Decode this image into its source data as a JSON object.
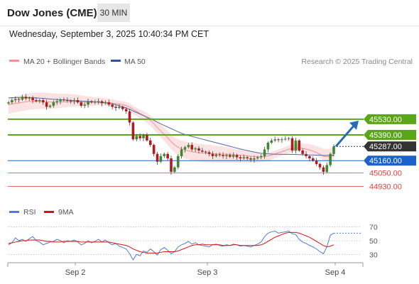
{
  "header": {
    "instrument": "Dow Jones (CME)",
    "timeframe": "30 MIN",
    "datetime": "Wednesday, September 3, 2025 10:40:34 PM CET"
  },
  "legend": {
    "ma20_label": "MA 20 + Bollinger Bands",
    "ma50_label": "MA 50",
    "credit": "Research © 2025 Trading Central"
  },
  "rsi_legend": {
    "rsi_label": "RSI",
    "ma9_label": "9MA"
  },
  "colors": {
    "resistance": "#5aa51a",
    "support_main": "#1a62c9",
    "support_secondary": "#e84040",
    "current": "#333333",
    "arrow": "#2a6bb5",
    "bollinger_fill": "#fbe3e3",
    "ma20": "#f19393",
    "ma50": "#5566aa",
    "rsi_line": "#4a7fd8",
    "rsi_ma": "#dd1111",
    "candle_up": "#3c8a2e",
    "candle_down": "#b01b1b"
  },
  "chart_data": [
    {
      "type": "candlestick",
      "title": "Dow Jones (CME)",
      "timeframe": "30 MIN",
      "x_labels": [
        "Sep 2",
        "Sep 3",
        "Sep 4"
      ],
      "ylim": [
        44870,
        45960
      ],
      "levels": [
        {
          "label": "45530.00",
          "value": 45530,
          "kind": "resistance"
        },
        {
          "label": "45390.00",
          "value": 45390,
          "kind": "resistance"
        },
        {
          "label": "45287.00",
          "value": 45287,
          "kind": "current"
        },
        {
          "label": "45160.00",
          "value": 45160,
          "kind": "support"
        },
        {
          "label": "45050.00",
          "value": 45050,
          "kind": "support"
        },
        {
          "label": "44930.00",
          "value": 44930,
          "kind": "support"
        }
      ],
      "close": [
        45680,
        45700,
        45710,
        45705,
        45730,
        45715,
        45720,
        45700,
        45690,
        45700,
        45680,
        45640,
        45650,
        45680,
        45690,
        45705,
        45700,
        45695,
        45690,
        45700,
        45680,
        45650,
        45660,
        45690,
        45680,
        45685,
        45690,
        45672,
        45680,
        45660,
        45640,
        45630,
        45640,
        45620,
        45600,
        45500,
        45350,
        45380,
        45360,
        45390,
        45340,
        45300,
        45220,
        45150,
        45200,
        45220,
        45180,
        45060,
        45100,
        45200,
        45260,
        45280,
        45300,
        45260,
        45270,
        45250,
        45240,
        45235,
        45220,
        45200,
        45215,
        45210,
        45200,
        45210,
        45195,
        45210,
        45190,
        45180,
        45190,
        45180,
        45170,
        45180,
        45190,
        45200,
        45260,
        45320,
        45340,
        45350,
        45345,
        45350,
        45355,
        45360,
        45250,
        45340,
        45250,
        45220,
        45200,
        45180,
        45160,
        45130,
        45100,
        45060,
        45120,
        45220,
        45287
      ],
      "open": [
        45670,
        45680,
        45700,
        45710,
        45705,
        45730,
        45715,
        45720,
        45700,
        45690,
        45700,
        45680,
        45640,
        45650,
        45680,
        45690,
        45705,
        45700,
        45695,
        45690,
        45700,
        45680,
        45650,
        45660,
        45690,
        45680,
        45685,
        45690,
        45672,
        45680,
        45660,
        45640,
        45630,
        45640,
        45620,
        45600,
        45500,
        45350,
        45380,
        45360,
        45390,
        45340,
        45300,
        45220,
        45150,
        45200,
        45220,
        45180,
        45060,
        45100,
        45200,
        45260,
        45280,
        45300,
        45260,
        45270,
        45250,
        45240,
        45235,
        45220,
        45200,
        45215,
        45210,
        45200,
        45210,
        45195,
        45210,
        45190,
        45180,
        45190,
        45180,
        45170,
        45180,
        45190,
        45200,
        45260,
        45320,
        45340,
        45350,
        45345,
        45350,
        45355,
        45360,
        45250,
        45340,
        45250,
        45220,
        45200,
        45180,
        45160,
        45130,
        45100,
        45060,
        45120,
        45220
      ],
      "ma20": [
        45660,
        45665,
        45670,
        45675,
        45680,
        45685,
        45688,
        45690,
        45690,
        45690,
        45688,
        45685,
        45683,
        45682,
        45682,
        45683,
        45684,
        45685,
        45685,
        45686,
        45685,
        45683,
        45682,
        45682,
        45682,
        45682,
        45683,
        45681,
        45680,
        45678,
        45674,
        45670,
        45665,
        45660,
        45652,
        45638,
        45618,
        45600,
        45580,
        45565,
        45545,
        45520,
        45490,
        45455,
        45425,
        45395,
        45365,
        45330,
        45300,
        45280,
        45265,
        45255,
        45248,
        45240,
        45235,
        45230,
        45228,
        45226,
        45224,
        45222,
        45220,
        45219,
        45218,
        45217,
        45214,
        45213,
        45210,
        45208,
        45206,
        45203,
        45200,
        45197,
        45195,
        45194,
        45196,
        45202,
        45210,
        45220,
        45230,
        45240,
        45250,
        45262,
        45265,
        45272,
        45274,
        45270,
        45262,
        45255,
        45245,
        45232,
        45218,
        45200,
        45195,
        45198,
        45205
      ],
      "ma50": [
        45720,
        45722,
        45723,
        45724,
        45724,
        45724,
        45723,
        45722,
        45720,
        45718,
        45716,
        45713,
        45710,
        45708,
        45706,
        45704,
        45702,
        45700,
        45698,
        45696,
        45694,
        45692,
        45690,
        45688,
        45686,
        45684,
        45682,
        45679,
        45676,
        45672,
        45666,
        45660,
        45650,
        45640,
        45630,
        45618,
        45604,
        45590,
        45576,
        45562,
        45548,
        45534,
        45520,
        45504,
        45488,
        45474,
        45460,
        45446,
        45432,
        45418,
        45404,
        45394,
        45385,
        45376,
        45368,
        45360,
        45352,
        45344,
        45336,
        45328,
        45320,
        45312,
        45304,
        45296,
        45288,
        45280,
        45272,
        45264,
        45257,
        45250,
        45243,
        45237,
        45231,
        45226,
        45223,
        45221,
        45219,
        45218,
        45217,
        45216,
        45216,
        45216,
        45215,
        45215,
        45214,
        45213,
        45212,
        45211,
        45210,
        45209,
        45208,
        45207,
        45207,
        45208,
        45210
      ]
    },
    {
      "type": "line",
      "title": "RSI",
      "ylim": [
        20,
        80
      ],
      "yticks": [
        70,
        50,
        30
      ],
      "x_labels": [
        "Sep 2",
        "Sep 3",
        "Sep 4"
      ],
      "series": [
        {
          "name": "RSI",
          "values": [
            44,
            47,
            54,
            50,
            52,
            49,
            53,
            56,
            50,
            48,
            44,
            46,
            48,
            49,
            52,
            50,
            47,
            50,
            49,
            51,
            48,
            44,
            46,
            50,
            47,
            49,
            52,
            48,
            51,
            47,
            44,
            46,
            42,
            40,
            38,
            31,
            22,
            30,
            28,
            35,
            33,
            38,
            34,
            29,
            37,
            40,
            36,
            31,
            34,
            41,
            44,
            46,
            49,
            45,
            47,
            44,
            43,
            42,
            41,
            44,
            45,
            43,
            42,
            44,
            43,
            45,
            44,
            42,
            43,
            42,
            41,
            43,
            45,
            48,
            56,
            61,
            63,
            64,
            61,
            62,
            63,
            64,
            60,
            59,
            52,
            48,
            46,
            43,
            41,
            38,
            34,
            31,
            41,
            58,
            61
          ]
        },
        {
          "name": "9MA",
          "values": [
            46,
            47,
            48,
            49,
            50,
            50,
            51,
            51,
            51,
            51,
            50,
            49,
            49,
            48,
            48,
            48,
            49,
            49,
            49,
            49,
            49,
            48,
            48,
            48,
            48,
            48,
            48,
            48,
            48,
            48,
            47,
            46,
            45,
            44,
            43,
            41,
            38,
            36,
            34,
            33,
            32,
            32,
            32,
            32,
            33,
            34,
            34,
            34,
            34,
            35,
            37,
            39,
            41,
            43,
            44,
            44,
            45,
            44,
            44,
            44,
            44,
            44,
            43,
            43,
            43,
            44,
            44,
            43,
            43,
            43,
            43,
            43,
            43,
            44,
            46,
            49,
            52,
            55,
            57,
            59,
            61,
            62,
            62,
            62,
            61,
            59,
            57,
            55,
            52,
            49,
            46,
            43,
            41,
            42,
            44
          ]
        }
      ]
    }
  ]
}
